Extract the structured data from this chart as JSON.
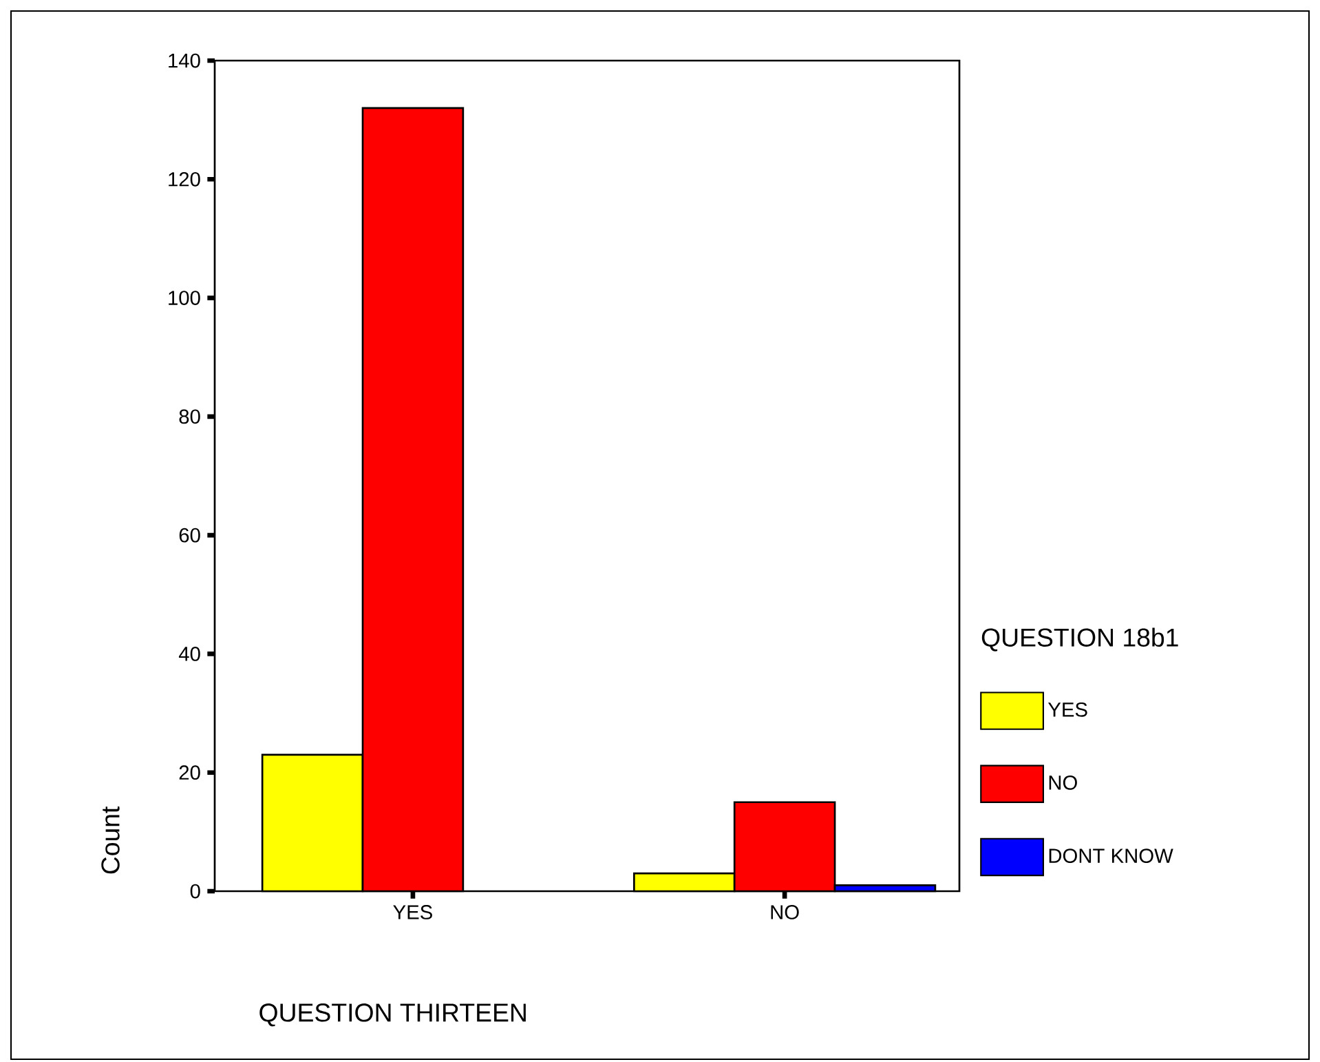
{
  "chart_data": {
    "type": "bar",
    "xlabel": "QUESTION THIRTEEN",
    "ylabel": "Count",
    "legend_title": "QUESTION 18b1",
    "categories": [
      "YES",
      "NO"
    ],
    "series": [
      {
        "name": "YES",
        "color": "#ffff00",
        "values": [
          23,
          3
        ]
      },
      {
        "name": "NO",
        "color": "#ff0000",
        "values": [
          132,
          15
        ]
      },
      {
        "name": "DONT KNOW",
        "color": "#0000ff",
        "values": [
          null,
          1
        ]
      }
    ],
    "ylim": [
      0,
      140
    ],
    "yticks": [
      0,
      20,
      40,
      60,
      80,
      100,
      120,
      140
    ],
    "legend": "right"
  }
}
